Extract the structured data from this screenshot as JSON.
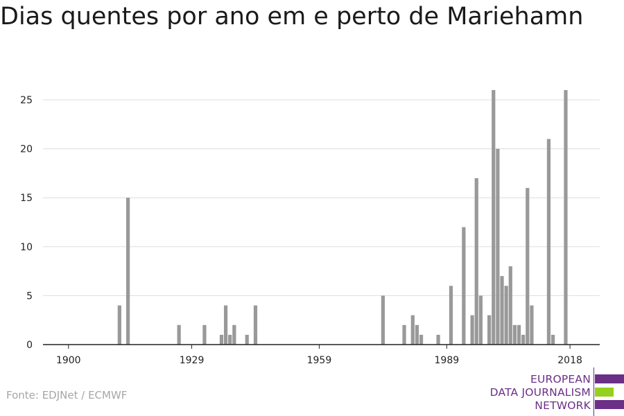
{
  "title": "Dias quentes por ano em e perto de Mariehamn",
  "source": "Fonte: EDJNet / ECMWF",
  "logo": {
    "lines": [
      "EUROPEAN",
      "DATA JOURNALISM",
      "NETWORK"
    ],
    "colors": {
      "purple": "#6b2f87",
      "green": "#95d01f"
    }
  },
  "chart_data": {
    "type": "bar",
    "title": "Dias quentes por ano em e perto de Mariehamn",
    "xlabel": "",
    "ylabel": "",
    "x_ticks": [
      1900,
      1929,
      1959,
      1989,
      2018
    ],
    "y_ticks": [
      0,
      5,
      10,
      15,
      20,
      25
    ],
    "xlim": [
      1894,
      2025
    ],
    "ylim": [
      0,
      26.7
    ],
    "grid": true,
    "bar_color": "#999999",
    "grid_color": "#dddddd",
    "x": [
      1912,
      1914,
      1926,
      1932,
      1936,
      1937,
      1938,
      1939,
      1942,
      1944,
      1974,
      1979,
      1981,
      1982,
      1983,
      1987,
      1990,
      1993,
      1995,
      1996,
      1997,
      1999,
      2000,
      2001,
      2002,
      2003,
      2004,
      2005,
      2006,
      2007,
      2008,
      2009,
      2013,
      2014,
      2017
    ],
    "values": [
      4,
      15,
      2,
      2,
      1,
      4,
      1,
      2,
      1,
      4,
      5,
      2,
      3,
      2,
      1,
      1,
      6,
      12,
      3,
      17,
      5,
      3,
      26,
      20,
      7,
      6,
      8,
      2,
      2,
      1,
      16,
      4,
      21,
      1,
      26
    ]
  }
}
